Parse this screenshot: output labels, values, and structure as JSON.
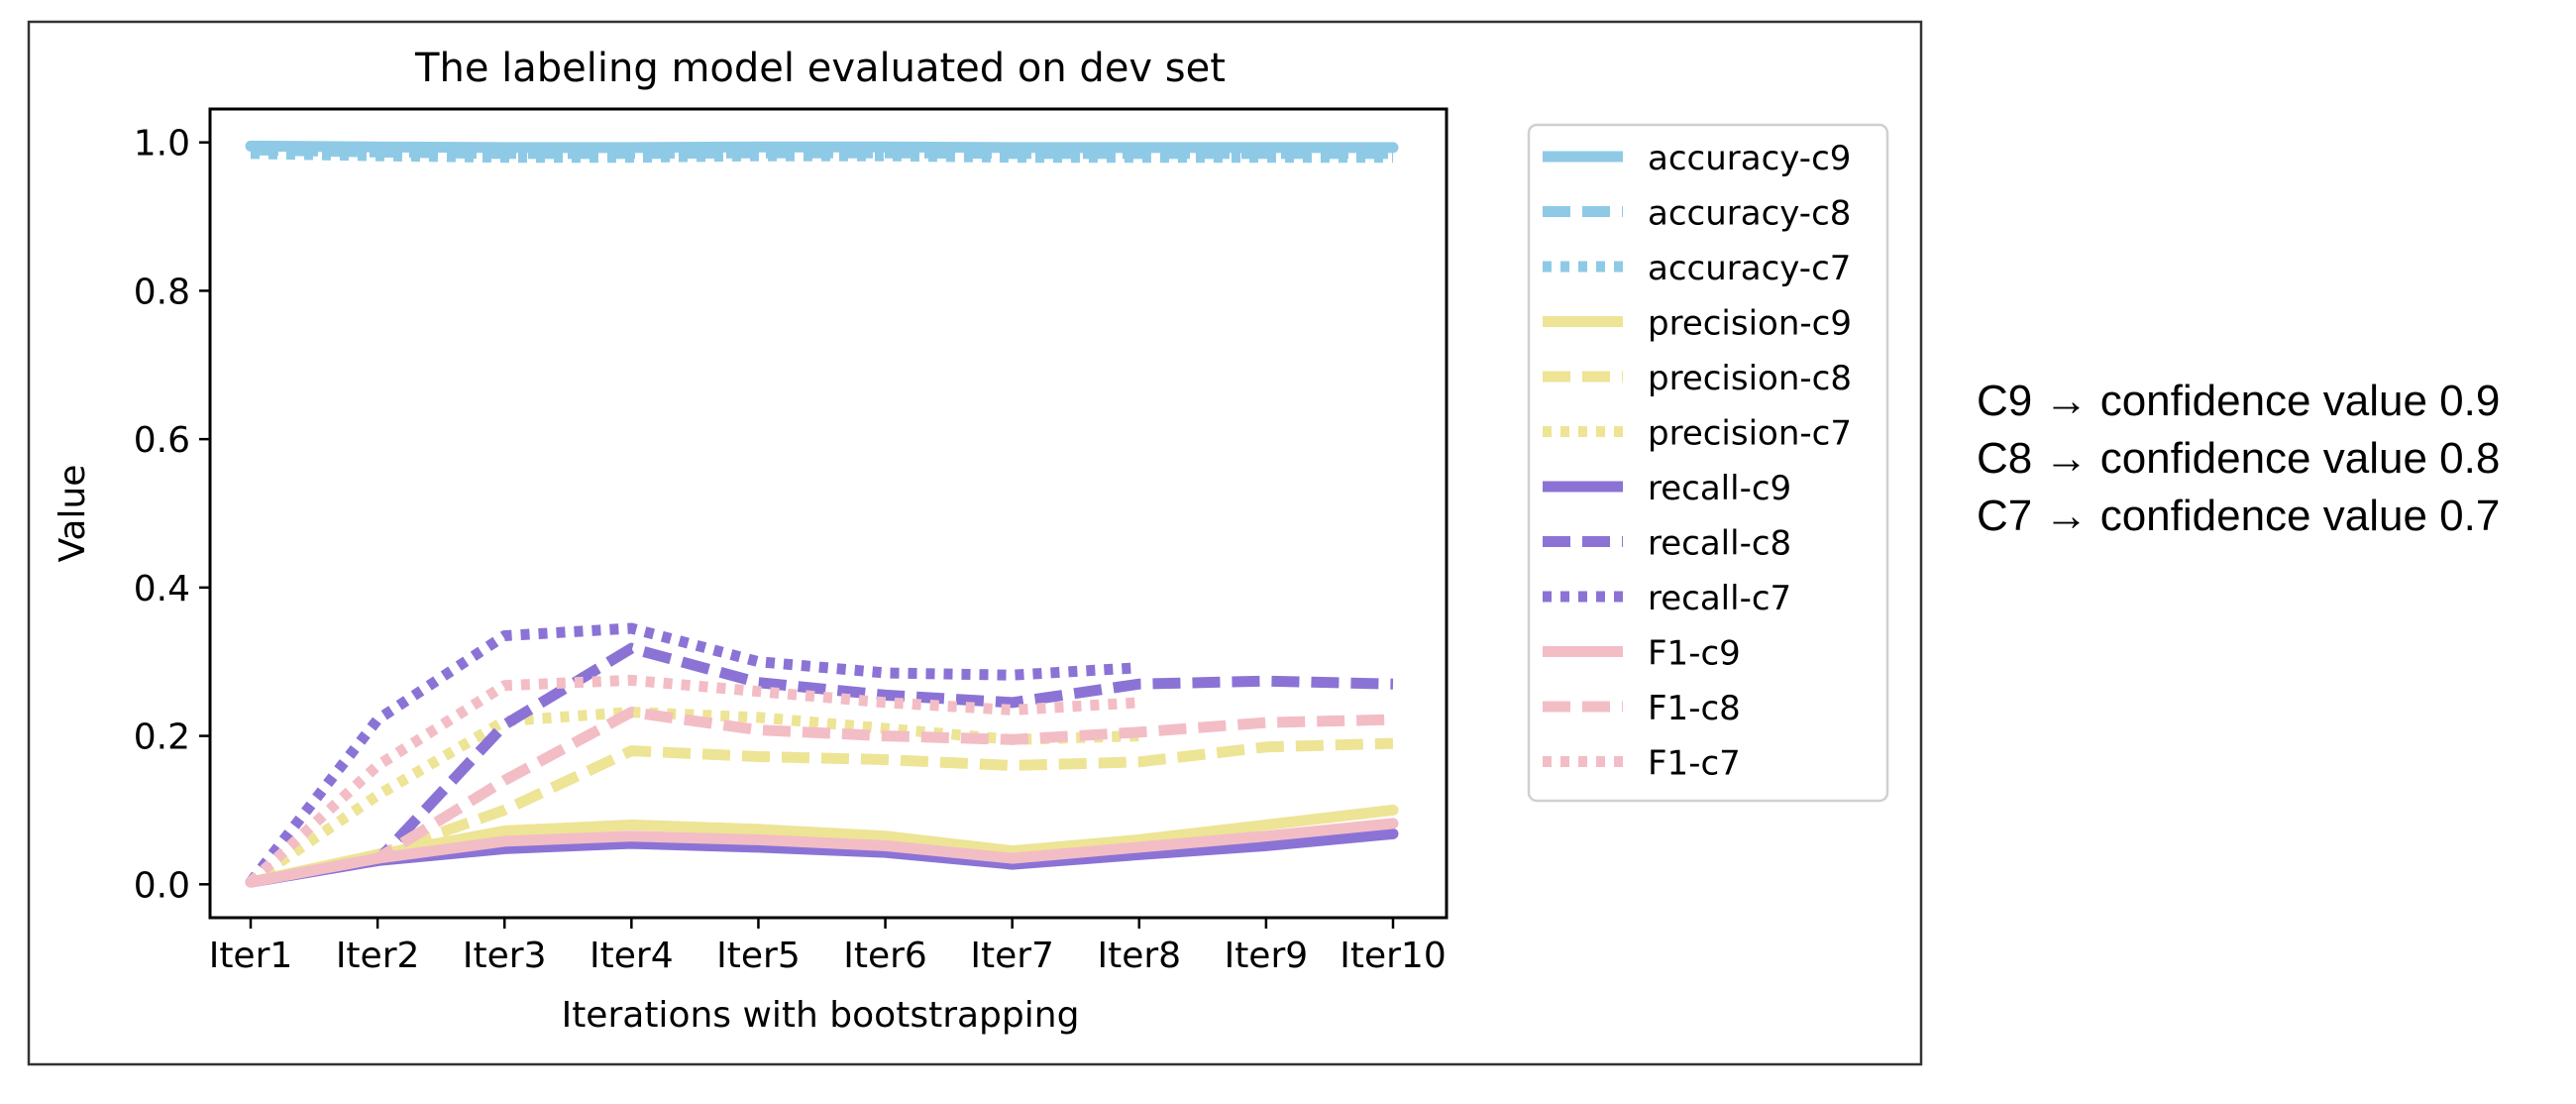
{
  "chart_data": {
    "type": "line",
    "title": "The labeling model evaluated on dev set",
    "xlabel": "Iterations with bootstrapping",
    "ylabel": "Value",
    "categories": [
      "Iter1",
      "Iter2",
      "Iter3",
      "Iter4",
      "Iter5",
      "Iter6",
      "Iter7",
      "Iter8",
      "Iter9",
      "Iter10"
    ],
    "ylim": [
      -0.045,
      1.045
    ],
    "yticks": [
      "0.0",
      "0.2",
      "0.4",
      "0.6",
      "0.8",
      "1.0"
    ],
    "grid": false,
    "legend_position": "upper-right-outside",
    "series": [
      {
        "name": "accuracy-c9",
        "style": "solid",
        "color": "#8ecae6",
        "values": [
          0.995,
          0.994,
          0.993,
          0.993,
          0.994,
          0.994,
          0.993,
          0.993,
          0.993,
          0.993
        ]
      },
      {
        "name": "accuracy-c8",
        "style": "dashed",
        "color": "#8ecae6",
        "values": [
          0.99,
          0.987,
          0.985,
          0.985,
          0.986,
          0.986,
          0.985,
          0.985,
          0.985,
          0.985
        ]
      },
      {
        "name": "accuracy-c7",
        "style": "dotted",
        "color": "#8ecae6",
        "values": [
          0.985,
          0.982,
          0.98,
          0.98,
          0.982,
          0.982,
          0.98,
          0.98,
          0.98,
          0.98
        ]
      },
      {
        "name": "precision-c9",
        "style": "solid",
        "color": "#ede495",
        "values": [
          0.003,
          0.04,
          0.072,
          0.08,
          0.074,
          0.065,
          0.045,
          0.06,
          0.08,
          0.1
        ]
      },
      {
        "name": "precision-c8",
        "style": "dashed",
        "color": "#ede495",
        "values": [
          0.003,
          0.04,
          0.1,
          0.18,
          0.172,
          0.168,
          0.16,
          0.165,
          0.185,
          0.19
        ]
      },
      {
        "name": "precision-c7",
        "style": "dotted",
        "color": "#ede495",
        "values": [
          0.003,
          0.12,
          0.22,
          0.232,
          0.225,
          0.21,
          0.195,
          0.2,
          null,
          null
        ]
      },
      {
        "name": "recall-c9",
        "style": "solid",
        "color": "#8b73d6",
        "values": [
          0.003,
          0.032,
          0.048,
          0.055,
          0.05,
          0.043,
          0.027,
          0.04,
          0.052,
          0.068
        ]
      },
      {
        "name": "recall-c8",
        "style": "dashed",
        "color": "#8b73d6",
        "values": [
          0.003,
          0.032,
          0.215,
          0.318,
          0.272,
          0.255,
          0.245,
          0.27,
          0.274,
          0.27
        ]
      },
      {
        "name": "recall-c7",
        "style": "dotted",
        "color": "#8b73d6",
        "values": [
          0.003,
          0.222,
          0.335,
          0.345,
          0.3,
          0.285,
          0.282,
          0.292,
          null,
          null
        ]
      },
      {
        "name": "F1-c9",
        "style": "solid",
        "color": "#f3bdc6",
        "values": [
          0.003,
          0.035,
          0.058,
          0.065,
          0.06,
          0.052,
          0.035,
          0.05,
          0.065,
          0.082
        ]
      },
      {
        "name": "F1-c8",
        "style": "dashed",
        "color": "#f3bdc6",
        "values": [
          0.003,
          0.035,
          0.14,
          0.232,
          0.208,
          0.2,
          0.195,
          0.205,
          0.218,
          0.222
        ]
      },
      {
        "name": "F1-c7",
        "style": "dotted",
        "color": "#f3bdc6",
        "values": [
          0.003,
          0.16,
          0.268,
          0.275,
          0.26,
          0.245,
          0.235,
          0.245,
          null,
          null
        ]
      }
    ]
  },
  "note": {
    "lines": [
      "C9 → confidence value 0.9",
      "C8 → confidence value 0.8",
      "C7 → confidence value 0.7"
    ]
  }
}
